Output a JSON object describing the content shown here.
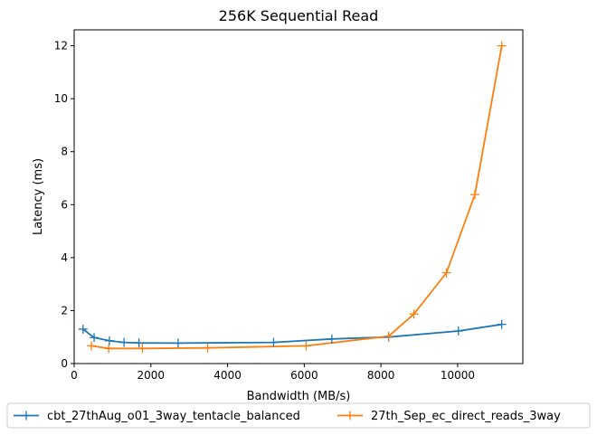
{
  "chart_data": {
    "type": "line",
    "title": "256K  Sequential Read",
    "xlabel": "Bandwidth (MB/s)",
    "ylabel": "Latency (ms)",
    "xlim": [
      0,
      11700
    ],
    "ylim": [
      0,
      12.6
    ],
    "xticks": [
      0,
      2000,
      4000,
      6000,
      8000,
      10000
    ],
    "yticks": [
      0,
      2,
      4,
      6,
      8,
      10,
      12
    ],
    "grid": false,
    "legend_position": "bottom-center",
    "marker": "plus",
    "series": [
      {
        "name": "cbt_27thAug_o01_3way_tentacle_balanced",
        "color": "#1f77b4",
        "x": [
          230,
          520,
          920,
          1300,
          1690,
          2710,
          5200,
          6720,
          8200,
          10020,
          11150
        ],
        "y": [
          1.3,
          0.98,
          0.86,
          0.8,
          0.78,
          0.77,
          0.8,
          0.93,
          1.0,
          1.23,
          1.48
        ]
      },
      {
        "name": "27th_Sep_ec_direct_reads_3way",
        "color": "#ff7f0e",
        "x": [
          450,
          900,
          1780,
          3480,
          6050,
          8200,
          8860,
          9710,
          10450,
          11150
        ],
        "y": [
          0.67,
          0.57,
          0.57,
          0.59,
          0.67,
          1.03,
          1.87,
          3.43,
          6.38,
          12.0
        ]
      }
    ]
  }
}
